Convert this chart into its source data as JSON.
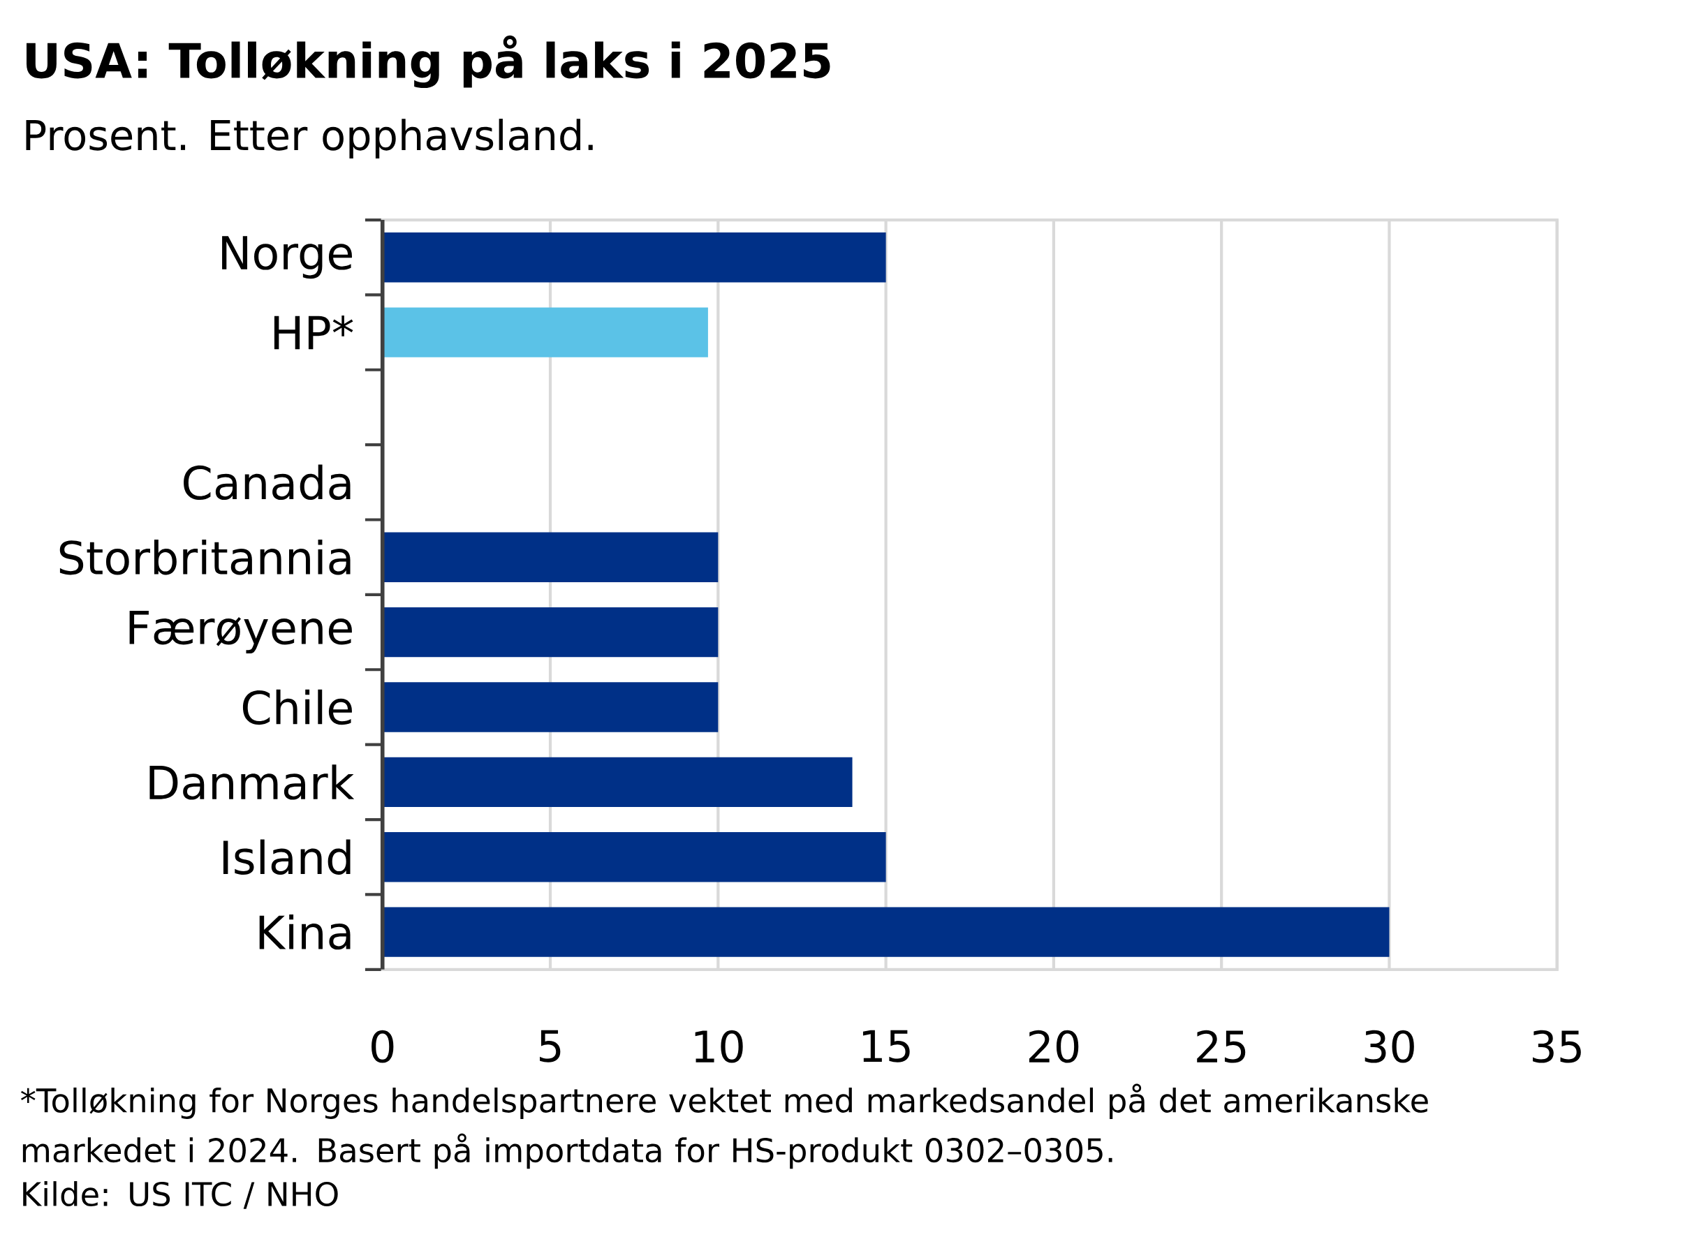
{
  "chart_data": {
    "type": "bar",
    "orientation": "horizontal",
    "title": "USA:  Tolløkning på laks i 2025",
    "subtitle": "Prosent. Etter opphavsland.",
    "categories": [
      "Norge",
      "HP*",
      null,
      "Canada",
      "Storbritannia",
      "Færøyene",
      "Chile",
      "Danmark",
      "Island",
      "Kina"
    ],
    "values": [
      15,
      9.7,
      null,
      null,
      10,
      10,
      10,
      14,
      15,
      30
    ],
    "colors": [
      "#003087",
      "#5bc2e7",
      "#003087",
      "#003087",
      "#003087",
      "#003087",
      "#003087",
      "#003087",
      "#003087",
      "#003087"
    ],
    "xlim": [
      0,
      35
    ],
    "xticks": [
      0,
      5,
      10,
      15,
      20,
      25,
      30,
      35
    ],
    "grid": "x",
    "annotations": [
      "*Tolløkning for Norges handelspartnere vektet med markedsandel på det amerikanske markedet i 2024. Basert på importdata for HS-produkt 0302–0305.",
      "Kilde: US ITC / NHO"
    ]
  }
}
